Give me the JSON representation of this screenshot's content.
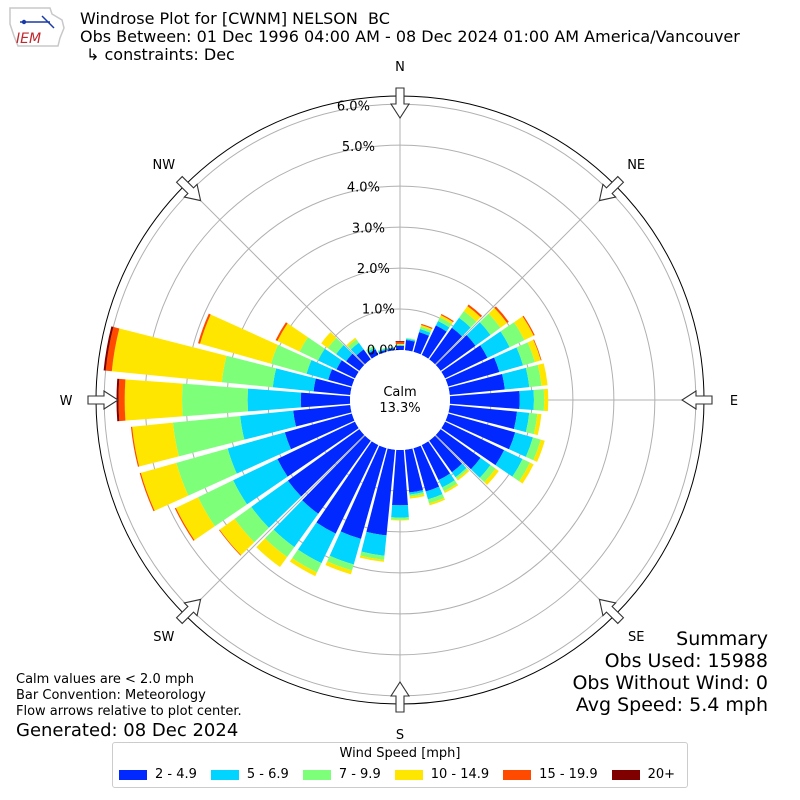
{
  "header": {
    "title": "Windrose Plot for [CWNM] NELSON  BC",
    "obs_between": "Obs Between: 01 Dec 1996 04:00 AM - 08 Dec 2024 01:00 AM America/Vancouver",
    "constraints": "↳ constraints: Dec",
    "logo_text": "IEM"
  },
  "summary": {
    "heading": "Summary",
    "obs_used": "Obs Used: 15988",
    "obs_without_wind": "Obs Without Wind: 0",
    "avg_speed": "Avg Speed: 5.4 mph"
  },
  "notes": {
    "calm": "Calm values are < 2.0 mph",
    "convention": "Bar Convention: Meteorology",
    "flow": "Flow arrows relative to plot center.",
    "generated": "Generated: 08 Dec 2024"
  },
  "center": {
    "label": "Calm",
    "value": "13.3%"
  },
  "legend": {
    "title": "Wind Speed [mph]",
    "items": [
      {
        "label": "2 - 4.9",
        "color": "#0028ff"
      },
      {
        "label": "5 - 6.9",
        "color": "#00d4ff"
      },
      {
        "label": "7 - 9.9",
        "color": "#7dff7a"
      },
      {
        "label": "10 - 14.9",
        "color": "#ffe600"
      },
      {
        "label": "15 - 19.9",
        "color": "#ff4a00"
      },
      {
        "label": "20+",
        "color": "#800000"
      }
    ]
  },
  "chart_data": {
    "type": "windrose",
    "title": "Windrose Plot for [CWNM] NELSON  BC",
    "calm_percent": 13.3,
    "radial_ticks": [
      "0.0%",
      "1.0%",
      "2.0%",
      "3.0%",
      "4.0%",
      "5.0%",
      "6.0%"
    ],
    "radial_max": 6.2,
    "compass_labels": [
      {
        "label": "N",
        "deg": 0
      },
      {
        "label": "NE",
        "deg": 45
      },
      {
        "label": "E",
        "deg": 90
      },
      {
        "label": "SE",
        "deg": 135
      },
      {
        "label": "S",
        "deg": 180
      },
      {
        "label": "SW",
        "deg": 225
      },
      {
        "label": "W",
        "deg": 270
      },
      {
        "label": "NW",
        "deg": 315
      }
    ],
    "bins": [
      "2 - 4.9",
      "5 - 6.9",
      "7 - 9.9",
      "10 - 14.9",
      "15 - 19.9",
      "20+"
    ],
    "directions": [
      0,
      10,
      20,
      30,
      40,
      50,
      60,
      70,
      80,
      90,
      100,
      110,
      120,
      130,
      140,
      150,
      160,
      170,
      180,
      190,
      200,
      210,
      220,
      230,
      240,
      250,
      260,
      270,
      280,
      290,
      300,
      310,
      320,
      330,
      340,
      350
    ],
    "values": [
      [
        0.1,
        0.02,
        0.01,
        0.02,
        0.05,
        0.02
      ],
      [
        0.25,
        0.03,
        0.02,
        0.0,
        0.0,
        0.0
      ],
      [
        0.5,
        0.08,
        0.06,
        0.04,
        0.03,
        0.0
      ],
      [
        0.8,
        0.12,
        0.1,
        0.06,
        0.03,
        0.0
      ],
      [
        0.95,
        0.3,
        0.2,
        0.15,
        0.05,
        0.0
      ],
      [
        1.05,
        0.45,
        0.3,
        0.2,
        0.05,
        0.0
      ],
      [
        1.15,
        0.6,
        0.4,
        0.25,
        0.03,
        0.0
      ],
      [
        1.3,
        0.6,
        0.3,
        0.15,
        0.02,
        0.0
      ],
      [
        1.35,
        0.6,
        0.3,
        0.15,
        0.0,
        0.0
      ],
      [
        1.7,
        0.35,
        0.25,
        0.1,
        0.0,
        0.0
      ],
      [
        1.65,
        0.3,
        0.2,
        0.1,
        0.0,
        0.0
      ],
      [
        1.7,
        0.45,
        0.2,
        0.1,
        0.0,
        0.0
      ],
      [
        1.6,
        0.5,
        0.2,
        0.1,
        0.0,
        0.0
      ],
      [
        1.2,
        0.3,
        0.15,
        0.1,
        0.0,
        0.0
      ],
      [
        0.95,
        0.15,
        0.05,
        0.05,
        0.0,
        0.0
      ],
      [
        0.95,
        0.2,
        0.1,
        0.05,
        0.0,
        0.0
      ],
      [
        1.1,
        0.2,
        0.1,
        0.05,
        0.0,
        0.0
      ],
      [
        1.05,
        0.05,
        0.05,
        0.05,
        0.0,
        0.0
      ],
      [
        1.35,
        0.3,
        0.05,
        0.02,
        0.0,
        0.0
      ],
      [
        2.1,
        0.5,
        0.1,
        0.05,
        0.0,
        0.0
      ],
      [
        2.3,
        0.65,
        0.15,
        0.1,
        0.0,
        0.0
      ],
      [
        2.4,
        0.8,
        0.25,
        0.1,
        0.0,
        0.0
      ],
      [
        2.2,
        1.0,
        0.3,
        0.3,
        0.0,
        0.0
      ],
      [
        2.15,
        1.1,
        0.5,
        0.45,
        0.02,
        0.0
      ],
      [
        2.1,
        1.2,
        0.95,
        0.6,
        0.03,
        0.0
      ],
      [
        1.7,
        1.45,
        1.3,
        0.9,
        0.03,
        0.0
      ],
      [
        1.4,
        1.3,
        1.65,
        1.0,
        0.03,
        0.0
      ],
      [
        1.2,
        1.3,
        1.6,
        1.4,
        0.15,
        0.05
      ],
      [
        0.9,
        1.0,
        1.25,
        2.7,
        0.15,
        0.05
      ],
      [
        0.6,
        0.55,
        0.9,
        1.8,
        0.05,
        0.0
      ],
      [
        0.5,
        0.5,
        0.5,
        0.6,
        0.05,
        0.0
      ],
      [
        0.4,
        0.3,
        0.25,
        0.2,
        0.0,
        0.0
      ],
      [
        0.3,
        0.2,
        0.1,
        0.05,
        0.0,
        0.0
      ],
      [
        0.15,
        0.05,
        0.05,
        0.0,
        0.0,
        0.0
      ],
      [
        0.05,
        0.03,
        0.02,
        0.0,
        0.0,
        0.0
      ],
      [
        0.05,
        0.02,
        0.01,
        0.0,
        0.0,
        0.0
      ]
    ]
  }
}
